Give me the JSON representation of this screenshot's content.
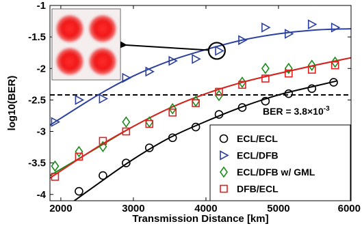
{
  "chart_data": {
    "type": "scatter",
    "xlabel": "Transmission Distance [km]",
    "ylabel": "log10(BER)",
    "xlim": [
      1850,
      6000
    ],
    "ylim": [
      -4.1,
      -1
    ],
    "xticks": [
      2000,
      3000,
      4000,
      5000,
      6000
    ],
    "yticks": [
      -1,
      -1.5,
      -2,
      -2.5,
      -3,
      -3.5,
      -4
    ],
    "xtick_labels": [
      "2000",
      "3000",
      "4000",
      "5000",
      "6000"
    ],
    "ytick_labels": [
      "-1",
      "-1.5",
      "-2",
      "-2.5",
      "-3",
      "-3.5",
      "-4"
    ],
    "grid": false,
    "legend_position": "bottom-right",
    "threshold": {
      "value": -2.42,
      "label": "BER = 3.8×10",
      "label_exp": "-3"
    },
    "inset_annotation": {
      "x": 4150,
      "y": -1.72
    },
    "series": [
      {
        "name": "ECL/ECL",
        "marker": "circle",
        "color": "#000000",
        "x": [
          2250,
          2580,
          2900,
          3220,
          3540,
          3860,
          4180,
          4500,
          4820,
          5140,
          5460,
          5760
        ],
        "y": [
          -3.95,
          -3.7,
          -3.5,
          -3.26,
          -3.1,
          -2.93,
          -2.73,
          -2.62,
          -2.52,
          -2.4,
          -2.32,
          -2.22
        ],
        "fit": [
          [
            1850,
            -4.38
          ],
          [
            2500,
            -3.84
          ],
          [
            3000,
            -3.44
          ],
          [
            3500,
            -3.1
          ],
          [
            4000,
            -2.84
          ],
          [
            4500,
            -2.61
          ],
          [
            5000,
            -2.42
          ],
          [
            5500,
            -2.28
          ],
          [
            5800,
            -2.2
          ]
        ]
      },
      {
        "name": "ECL/DFB",
        "marker": "triangle-right",
        "color": "#2b3f9e",
        "x": [
          1920,
          2250,
          2580,
          2900,
          3220,
          3540,
          3860,
          4180,
          4500,
          4820,
          5140,
          5460,
          5780
        ],
        "y": [
          -2.85,
          -2.5,
          -2.48,
          -2.15,
          -2.05,
          -1.88,
          -1.85,
          -1.72,
          -1.55,
          -1.35,
          -1.45,
          -1.3,
          -1.35
        ],
        "fit": [
          [
            1850,
            -2.9
          ],
          [
            2500,
            -2.43
          ],
          [
            3000,
            -2.12
          ],
          [
            3500,
            -1.88
          ],
          [
            4000,
            -1.7
          ],
          [
            4500,
            -1.55
          ],
          [
            5000,
            -1.45
          ],
          [
            5500,
            -1.39
          ],
          [
            6000,
            -1.37
          ]
        ]
      },
      {
        "name": "ECL/DFB w/ GML",
        "marker": "diamond",
        "color": "#1a8a1a",
        "x": [
          1920,
          2250,
          2580,
          2900,
          3220,
          3540,
          3860,
          4180,
          4500,
          4820,
          5140,
          5460,
          5780
        ],
        "y": [
          -3.55,
          -3.32,
          -3.24,
          -2.85,
          -2.85,
          -2.64,
          -2.52,
          -2.43,
          -2.22,
          -2.0,
          -2.0,
          -1.95,
          -1.9
        ],
        "fit": [
          [
            1850,
            -3.7
          ],
          [
            2500,
            -3.26
          ],
          [
            3000,
            -2.92
          ],
          [
            3500,
            -2.63
          ],
          [
            4000,
            -2.4
          ],
          [
            4500,
            -2.22
          ],
          [
            5000,
            -2.08
          ],
          [
            5500,
            -1.95
          ],
          [
            6000,
            -1.83
          ]
        ]
      },
      {
        "name": "DFB/ECL",
        "marker": "square",
        "color": "#e02020",
        "x": [
          1920,
          2250,
          2580,
          2900,
          3220,
          3540,
          3860,
          4180,
          4500,
          4820,
          5140,
          5460,
          5780
        ],
        "y": [
          -3.72,
          -3.4,
          -3.15,
          -3.0,
          -2.88,
          -2.7,
          -2.55,
          -2.37,
          -2.26,
          -2.16,
          -2.08,
          -2.02,
          -1.95
        ],
        "fit": [
          [
            1850,
            -3.74
          ],
          [
            2500,
            -3.25
          ],
          [
            3000,
            -2.92
          ],
          [
            3500,
            -2.63
          ],
          [
            4000,
            -2.4
          ],
          [
            4500,
            -2.22
          ],
          [
            5000,
            -2.08
          ],
          [
            5500,
            -1.95
          ],
          [
            6000,
            -1.83
          ]
        ]
      }
    ]
  }
}
